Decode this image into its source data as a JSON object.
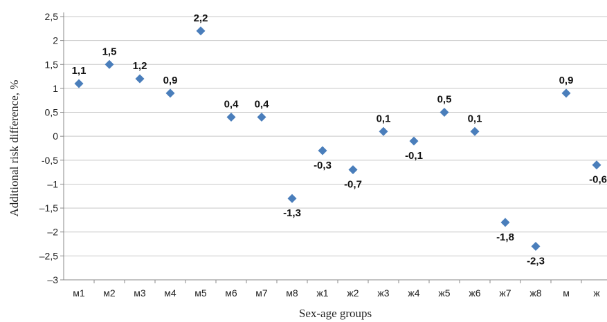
{
  "chart_data": {
    "type": "scatter",
    "xlabel": "Sex-age groups",
    "ylabel": "Additional risk difference, %",
    "ylim": [
      -3,
      2.5
    ],
    "y_ticks": [
      {
        "value": 2.5,
        "label": "2,5"
      },
      {
        "value": 2,
        "label": "2"
      },
      {
        "value": 1.5,
        "label": "1,5"
      },
      {
        "value": 1,
        "label": "1"
      },
      {
        "value": 0.5,
        "label": "0,5"
      },
      {
        "value": 0,
        "label": "0"
      },
      {
        "value": -0.5,
        "label": "-0,5"
      },
      {
        "value": -1,
        "label": "–1"
      },
      {
        "value": -1.5,
        "label": "–1,5"
      },
      {
        "value": -2,
        "label": "–2"
      },
      {
        "value": -2.5,
        "label": "–2,5"
      },
      {
        "value": -3,
        "label": "–3"
      }
    ],
    "grid": true,
    "legend": false,
    "marker_color": "#4a7ebb",
    "points": [
      {
        "x": "м1",
        "y": 1.1,
        "label": "1,1"
      },
      {
        "x": "м2",
        "y": 1.5,
        "label": "1,5"
      },
      {
        "x": "м3",
        "y": 1.2,
        "label": "1,2"
      },
      {
        "x": "м4",
        "y": 0.9,
        "label": "0,9"
      },
      {
        "x": "м5",
        "y": 2.2,
        "label": "2,2"
      },
      {
        "x": "м6",
        "y": 0.4,
        "label": "0,4"
      },
      {
        "x": "м7",
        "y": 0.4,
        "label": "0,4"
      },
      {
        "x": "м8",
        "y": -1.3,
        "label": "-1,3"
      },
      {
        "x": "ж1",
        "y": -0.3,
        "label": "-0,3"
      },
      {
        "x": "ж2",
        "y": -0.7,
        "label": "-0,7"
      },
      {
        "x": "ж3",
        "y": 0.1,
        "label": "0,1"
      },
      {
        "x": "ж4",
        "y": -0.1,
        "label": "-0,1"
      },
      {
        "x": "ж5",
        "y": 0.5,
        "label": "0,5"
      },
      {
        "x": "ж6",
        "y": 0.1,
        "label": "0,1"
      },
      {
        "x": "ж7",
        "y": -1.8,
        "label": "-1,8"
      },
      {
        "x": "ж8",
        "y": -2.3,
        "label": "-2,3"
      },
      {
        "x": "м",
        "y": 0.9,
        "label": "0,9"
      },
      {
        "x": "ж",
        "y": -0.6,
        "label": "-0,6"
      }
    ]
  }
}
